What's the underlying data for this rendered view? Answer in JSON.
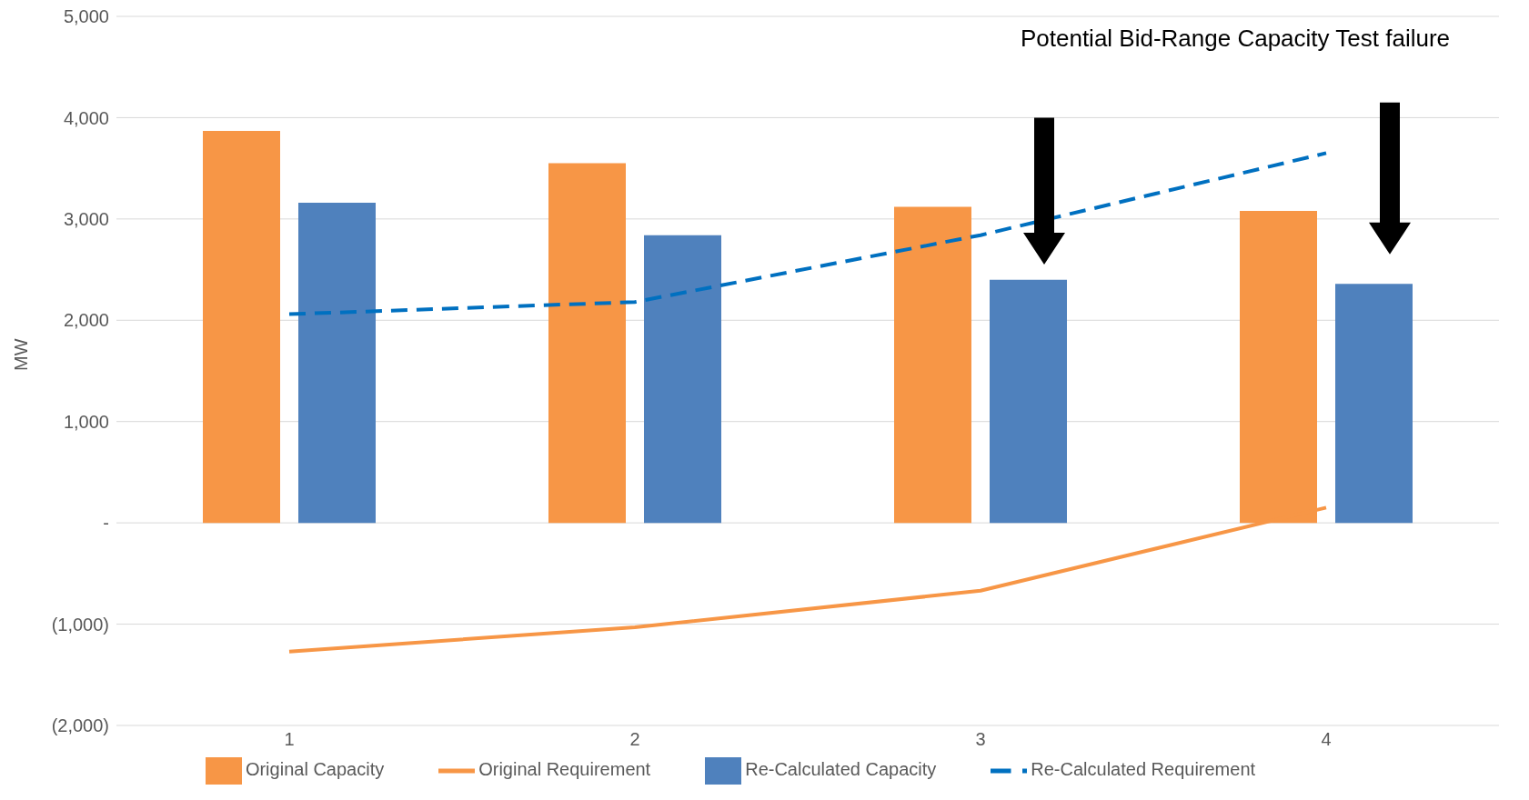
{
  "chart_data": {
    "type": "bar",
    "ylabel": "MW",
    "categories": [
      "1",
      "2",
      "3",
      "4"
    ],
    "series": [
      {
        "name": "Original Capacity",
        "color": "#f79646",
        "values": [
          3870,
          3550,
          3120,
          3080
        ]
      },
      {
        "name": "Re-Calculated Capacity",
        "color": "#4f81bd",
        "values": [
          3160,
          2840,
          2400,
          2360
        ]
      },
      {
        "name": "Original Requirement",
        "type": "line",
        "color": "#f79646",
        "line_style": "solid",
        "values": [
          -1270,
          -1030,
          -670,
          150
        ]
      },
      {
        "name": "Re-Calculated Requirement",
        "type": "line",
        "color": "#0070c0",
        "line_style": "dashed",
        "values": [
          2060,
          2180,
          2840,
          3650
        ]
      }
    ],
    "ylim": [
      -2000,
      5000
    ],
    "yticks": [
      {
        "value": -2000,
        "label": "(2,000)"
      },
      {
        "value": -1000,
        "label": "(1,000)"
      },
      {
        "value": 0,
        "label": "-"
      },
      {
        "value": 1000,
        "label": "1,000"
      },
      {
        "value": 2000,
        "label": "2,000"
      },
      {
        "value": 3000,
        "label": "3,000"
      },
      {
        "value": 4000,
        "label": "4,000"
      },
      {
        "value": 5000,
        "label": "5,000"
      }
    ],
    "grid": "y",
    "legend": "bottom",
    "marker": "none",
    "annotations": [
      "Potential Bid-Range Capacity Test failure"
    ]
  }
}
